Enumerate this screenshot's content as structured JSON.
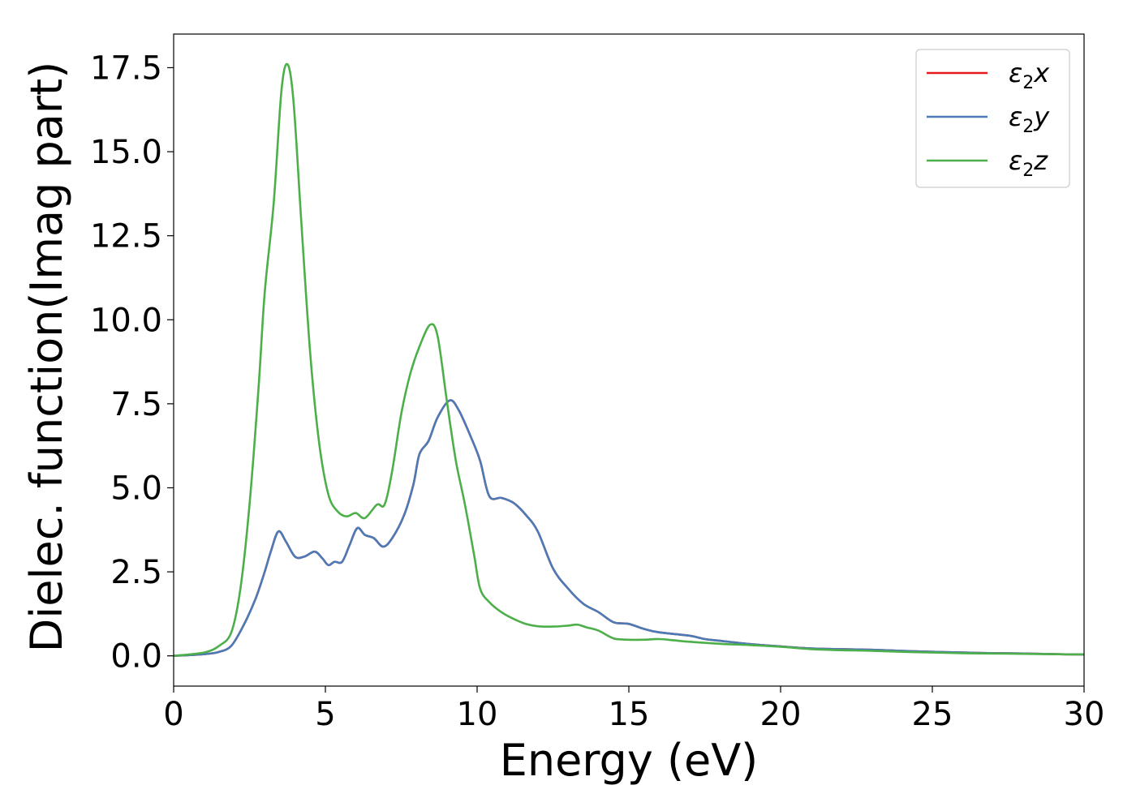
{
  "chart_data": {
    "type": "line",
    "title": "",
    "xlabel": "Energy (eV)",
    "ylabel": "Dielec. function(Imag part)",
    "xlim": [
      0,
      30
    ],
    "ylim": [
      -0.9,
      18.5
    ],
    "xticks": [
      0,
      5,
      10,
      15,
      20,
      25,
      30
    ],
    "xtick_labels": [
      "0",
      "5",
      "10",
      "15",
      "20",
      "25",
      "30"
    ],
    "yticks": [
      0.0,
      2.5,
      5.0,
      7.5,
      10.0,
      12.5,
      15.0,
      17.5
    ],
    "ytick_labels": [
      "0.0",
      "2.5",
      "5.0",
      "7.5",
      "10.0",
      "12.5",
      "15.0",
      "17.5"
    ],
    "grid": false,
    "legend_position": "top-right",
    "series": [
      {
        "name": "ε2x",
        "legend_base": "ε",
        "legend_sub": "2",
        "legend_tail": "x",
        "color": "#e41a1c",
        "x": [
          0,
          1,
          1.5,
          1.9,
          2.3,
          2.7,
          3.0,
          3.2,
          3.45,
          3.7,
          4.0,
          4.3,
          4.65,
          4.9,
          5.1,
          5.3,
          5.55,
          5.8,
          6.05,
          6.3,
          6.6,
          6.9,
          7.2,
          7.6,
          7.9,
          8.1,
          8.4,
          8.7,
          9.1,
          9.4,
          9.8,
          10.1,
          10.4,
          10.8,
          11.2,
          11.6,
          12.0,
          12.5,
          13.0,
          13.5,
          14.0,
          14.5,
          15.0,
          15.5,
          16.0,
          17.0,
          17.5,
          18.0,
          19.0,
          20.0,
          21.0,
          22.0,
          23.0,
          24.0,
          25.0,
          26.0,
          27.0,
          28.0,
          29.0,
          30.0
        ],
        "values": [
          0.0,
          0.05,
          0.12,
          0.3,
          0.9,
          1.7,
          2.5,
          3.1,
          3.7,
          3.4,
          2.95,
          2.95,
          3.1,
          2.9,
          2.7,
          2.8,
          2.8,
          3.3,
          3.8,
          3.6,
          3.5,
          3.25,
          3.5,
          4.2,
          5.1,
          6.0,
          6.4,
          7.1,
          7.6,
          7.3,
          6.5,
          5.8,
          4.75,
          4.7,
          4.55,
          4.2,
          3.7,
          2.6,
          2.0,
          1.55,
          1.3,
          1.0,
          0.95,
          0.8,
          0.7,
          0.6,
          0.5,
          0.45,
          0.35,
          0.28,
          0.22,
          0.2,
          0.18,
          0.15,
          0.12,
          0.1,
          0.08,
          0.07,
          0.05,
          0.04
        ]
      },
      {
        "name": "ε2y",
        "legend_base": "ε",
        "legend_sub": "2",
        "legend_tail": "y",
        "color": "#4a7bb7",
        "x": [
          0,
          1,
          1.5,
          1.9,
          2.3,
          2.7,
          3.0,
          3.2,
          3.45,
          3.7,
          4.0,
          4.3,
          4.65,
          4.9,
          5.1,
          5.3,
          5.55,
          5.8,
          6.05,
          6.3,
          6.6,
          6.9,
          7.2,
          7.6,
          7.9,
          8.1,
          8.4,
          8.7,
          9.1,
          9.4,
          9.8,
          10.1,
          10.4,
          10.8,
          11.2,
          11.6,
          12.0,
          12.5,
          13.0,
          13.5,
          14.0,
          14.5,
          15.0,
          15.5,
          16.0,
          17.0,
          17.5,
          18.0,
          19.0,
          20.0,
          21.0,
          22.0,
          23.0,
          24.0,
          25.0,
          26.0,
          27.0,
          28.0,
          29.0,
          30.0
        ],
        "values": [
          0.0,
          0.05,
          0.12,
          0.3,
          0.9,
          1.7,
          2.5,
          3.1,
          3.7,
          3.4,
          2.95,
          2.95,
          3.1,
          2.9,
          2.7,
          2.8,
          2.8,
          3.3,
          3.8,
          3.6,
          3.5,
          3.25,
          3.5,
          4.2,
          5.1,
          6.0,
          6.4,
          7.1,
          7.6,
          7.3,
          6.5,
          5.8,
          4.75,
          4.7,
          4.55,
          4.2,
          3.7,
          2.6,
          2.0,
          1.55,
          1.3,
          1.0,
          0.95,
          0.8,
          0.7,
          0.6,
          0.5,
          0.45,
          0.35,
          0.28,
          0.22,
          0.2,
          0.18,
          0.15,
          0.12,
          0.1,
          0.08,
          0.07,
          0.05,
          0.04
        ]
      },
      {
        "name": "ε2z",
        "legend_base": "ε",
        "legend_sub": "2",
        "legend_tail": "z",
        "color": "#4daf4a",
        "x": [
          0,
          1,
          1.5,
          1.9,
          2.2,
          2.5,
          2.8,
          3.0,
          3.3,
          3.55,
          3.75,
          3.95,
          4.2,
          4.5,
          4.8,
          5.1,
          5.4,
          5.7,
          6.0,
          6.3,
          6.7,
          6.95,
          7.2,
          7.5,
          7.8,
          8.1,
          8.45,
          8.7,
          9.0,
          9.3,
          9.6,
          9.9,
          10.1,
          10.4,
          10.8,
          11.2,
          11.6,
          12.0,
          12.5,
          13.0,
          13.3,
          13.6,
          14.0,
          14.5,
          15.0,
          15.5,
          16.0,
          16.5,
          17.0,
          18.0,
          19.0,
          20.0,
          21.0,
          22.0,
          23.0,
          24.0,
          25.0,
          26.0,
          27.0,
          28.0,
          29.0,
          30.0
        ],
        "values": [
          0.0,
          0.1,
          0.3,
          0.7,
          2.0,
          4.5,
          8.0,
          10.8,
          13.5,
          16.8,
          17.6,
          16.5,
          13.0,
          9.0,
          6.3,
          4.8,
          4.3,
          4.15,
          4.25,
          4.1,
          4.5,
          4.5,
          5.5,
          7.2,
          8.4,
          9.2,
          9.85,
          9.5,
          7.6,
          5.8,
          4.5,
          3.0,
          2.0,
          1.6,
          1.3,
          1.1,
          0.95,
          0.88,
          0.87,
          0.9,
          0.93,
          0.85,
          0.75,
          0.52,
          0.48,
          0.48,
          0.5,
          0.46,
          0.42,
          0.36,
          0.32,
          0.27,
          0.2,
          0.17,
          0.15,
          0.12,
          0.1,
          0.08,
          0.07,
          0.06,
          0.05,
          0.04
        ]
      }
    ]
  }
}
